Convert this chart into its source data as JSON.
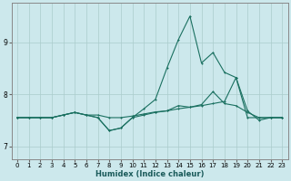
{
  "xlabel": "Humidex (Indice chaleur)",
  "bg_color": "#cce8ec",
  "grid_color": "#aacccc",
  "line_color": "#1a7060",
  "xlim": [
    -0.5,
    23.5
  ],
  "ylim": [
    6.75,
    9.75
  ],
  "x_ticks": [
    0,
    1,
    2,
    3,
    4,
    5,
    6,
    7,
    8,
    9,
    10,
    11,
    12,
    13,
    14,
    15,
    16,
    17,
    18,
    19,
    20,
    21,
    22,
    23
  ],
  "y_ticks": [
    7,
    8,
    9
  ],
  "series1_x": [
    0,
    1,
    2,
    3,
    4,
    5,
    6,
    7,
    8,
    9,
    10,
    11,
    12,
    13,
    14,
    15,
    16,
    17,
    18,
    19,
    20,
    21,
    22,
    23
  ],
  "series1_y": [
    7.55,
    7.55,
    7.55,
    7.55,
    7.6,
    7.65,
    7.6,
    7.6,
    7.55,
    7.55,
    7.58,
    7.62,
    7.66,
    7.68,
    7.72,
    7.75,
    7.78,
    7.82,
    7.86,
    8.32,
    7.55,
    7.55,
    7.55,
    7.55
  ],
  "series2_x": [
    0,
    1,
    2,
    3,
    4,
    5,
    6,
    7,
    8,
    9,
    10,
    11,
    12,
    13,
    14,
    15,
    16,
    17,
    18,
    19,
    20,
    21,
    22,
    23
  ],
  "series2_y": [
    7.55,
    7.55,
    7.55,
    7.55,
    7.6,
    7.65,
    7.6,
    7.55,
    7.3,
    7.35,
    7.55,
    7.72,
    7.9,
    8.5,
    9.05,
    9.5,
    8.6,
    8.8,
    8.42,
    8.32,
    7.68,
    7.5,
    7.55,
    7.55
  ],
  "series3_x": [
    0,
    1,
    2,
    3,
    4,
    5,
    6,
    7,
    8,
    9,
    10,
    11,
    12,
    13,
    14,
    15,
    16,
    17,
    18,
    19,
    20,
    21,
    22,
    23
  ],
  "series3_y": [
    7.55,
    7.55,
    7.55,
    7.55,
    7.6,
    7.65,
    7.6,
    7.55,
    7.3,
    7.35,
    7.55,
    7.6,
    7.65,
    7.68,
    7.78,
    7.75,
    7.8,
    8.05,
    7.82,
    7.78,
    7.65,
    7.55,
    7.55,
    7.55
  ]
}
